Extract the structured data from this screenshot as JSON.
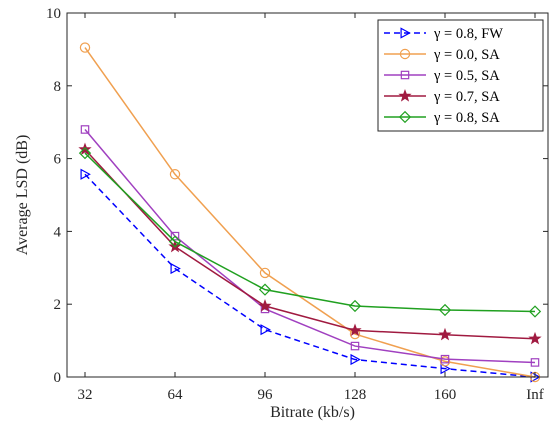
{
  "chart_data": {
    "type": "line",
    "xlabel": "Bitrate (kb/s)",
    "ylabel": "Average LSD (dB)",
    "categories": [
      "32",
      "64",
      "96",
      "128",
      "160",
      "Inf"
    ],
    "ylim": [
      0,
      10
    ],
    "yticks": [
      0,
      2,
      4,
      6,
      8,
      10
    ],
    "grid": false,
    "legend_position": "top-right",
    "series": [
      {
        "name": "γ = 0.8, FW",
        "color": "#0000ff",
        "dash": "dashed",
        "marker": "triangle-right",
        "values": [
          5.57,
          2.98,
          1.3,
          0.48,
          0.23,
          0.0
        ]
      },
      {
        "name": "γ = 0.0, SA",
        "color": "#f0a050",
        "dash": "solid",
        "marker": "circle",
        "values": [
          9.05,
          5.57,
          2.86,
          1.18,
          0.43,
          0.0
        ]
      },
      {
        "name": "γ = 0.5, SA",
        "color": "#a040c0",
        "dash": "solid",
        "marker": "square",
        "values": [
          6.8,
          3.87,
          1.87,
          0.85,
          0.49,
          0.4
        ]
      },
      {
        "name": "γ = 0.7, SA",
        "color": "#a01a40",
        "dash": "solid",
        "marker": "star",
        "values": [
          6.25,
          3.58,
          1.95,
          1.28,
          1.16,
          1.05
        ]
      },
      {
        "name": "γ = 0.8, SA",
        "color": "#20a020",
        "dash": "solid",
        "marker": "diamond",
        "values": [
          6.15,
          3.72,
          2.4,
          1.95,
          1.84,
          1.8
        ]
      }
    ]
  }
}
